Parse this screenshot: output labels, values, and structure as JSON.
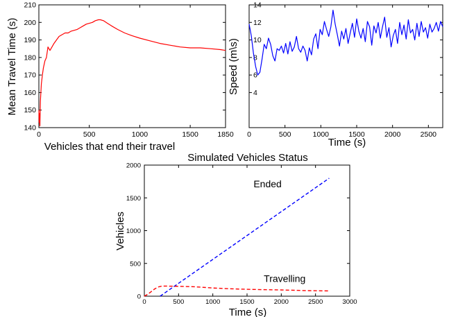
{
  "chart_data": [
    {
      "type": "line",
      "title": "",
      "xlabel": "Vehicles that end their travel",
      "ylabel": "Mean Travel Time (s)",
      "xlim": [
        0,
        1850
      ],
      "ylim": [
        140,
        210
      ],
      "xticks": [
        0,
        500,
        1000,
        1500,
        1850
      ],
      "yticks": [
        140,
        150,
        160,
        170,
        180,
        190,
        200,
        210
      ],
      "grid": false,
      "series": [
        {
          "color": "#ff0000",
          "style": "solid",
          "x": [
            0,
            3,
            6,
            10,
            15,
            20,
            25,
            35,
            45,
            60,
            75,
            90,
            110,
            130,
            150,
            175,
            200,
            230,
            260,
            290,
            320,
            350,
            380,
            410,
            440,
            470,
            500,
            530,
            560,
            590,
            610,
            640,
            680,
            720,
            780,
            850,
            920,
            1000,
            1100,
            1200,
            1300,
            1400,
            1500,
            1600,
            1700,
            1800,
            1850
          ],
          "y": [
            150,
            143,
            148,
            141,
            155,
            160,
            165,
            170,
            174,
            178,
            180,
            186,
            184,
            186,
            188,
            190,
            192,
            193,
            194,
            194,
            195,
            195.5,
            196,
            197,
            198,
            199,
            199.5,
            200,
            201,
            201.5,
            201.5,
            201,
            199.5,
            198,
            196,
            194,
            192.5,
            191,
            189.5,
            188,
            187,
            186,
            185.5,
            185.5,
            185,
            184.5,
            184
          ]
        }
      ]
    },
    {
      "type": "line",
      "title": "",
      "xlabel": "Time (s)",
      "ylabel": "Speed (m\\s)",
      "xlim": [
        0,
        2700
      ],
      "ylim": [
        0,
        14
      ],
      "xticks": [
        0,
        500,
        1000,
        1500,
        2000,
        2500
      ],
      "yticks": [
        4,
        6,
        8,
        10,
        12,
        14
      ],
      "grid": false,
      "series": [
        {
          "color": "#0000ff",
          "style": "solid",
          "x": [
            0,
            30,
            60,
            90,
            120,
            150,
            180,
            210,
            240,
            270,
            300,
            330,
            360,
            390,
            420,
            450,
            480,
            510,
            540,
            570,
            600,
            630,
            660,
            690,
            720,
            750,
            780,
            810,
            840,
            870,
            900,
            930,
            960,
            990,
            1020,
            1050,
            1080,
            1110,
            1140,
            1170,
            1200,
            1230,
            1260,
            1290,
            1320,
            1350,
            1380,
            1410,
            1440,
            1470,
            1500,
            1530,
            1560,
            1590,
            1620,
            1650,
            1680,
            1710,
            1740,
            1770,
            1800,
            1830,
            1860,
            1890,
            1920,
            1950,
            1980,
            2010,
            2040,
            2070,
            2100,
            2130,
            2160,
            2190,
            2220,
            2250,
            2280,
            2310,
            2340,
            2370,
            2400,
            2430,
            2460,
            2490,
            2520,
            2550,
            2580,
            2610,
            2640,
            2670,
            2700
          ],
          "y": [
            11.8,
            10.5,
            8.5,
            7.0,
            6.0,
            6.3,
            7.8,
            9.5,
            9.0,
            10.2,
            9.5,
            8.2,
            7.6,
            9.0,
            8.8,
            9.3,
            8.5,
            9.6,
            8.4,
            9.8,
            8.7,
            9.2,
            10.4,
            9.0,
            8.6,
            9.3,
            8.8,
            7.6,
            9.1,
            8.3,
            10.1,
            10.7,
            9.0,
            11.2,
            10.6,
            12.1,
            11.2,
            10.4,
            11.5,
            13.4,
            11.8,
            10.6,
            9.3,
            11.0,
            10.1,
            11.3,
            9.6,
            10.8,
            11.9,
            10.3,
            12.4,
            11.0,
            10.2,
            11.3,
            9.8,
            12.1,
            11.5,
            9.4,
            11.6,
            10.8,
            12.0,
            10.2,
            11.5,
            12.6,
            10.3,
            11.4,
            9.2,
            10.5,
            11.2,
            9.6,
            12.0,
            10.6,
            11.7,
            10.1,
            12.3,
            10.8,
            11.2,
            10.0,
            11.9,
            10.4,
            12.1,
            10.9,
            11.4,
            10.2,
            11.8,
            10.9,
            11.3,
            12.0,
            11.0,
            12.1,
            11.5
          ]
        }
      ]
    },
    {
      "type": "line",
      "title": "Simulated Vehicles Status",
      "xlabel": "Time (s)",
      "ylabel": "Vehicles",
      "xlim": [
        0,
        3000
      ],
      "ylim": [
        0,
        2000
      ],
      "xticks": [
        0,
        500,
        1000,
        1500,
        2000,
        2500,
        3000
      ],
      "yticks": [
        0,
        500,
        1000,
        1500,
        2000
      ],
      "grid": false,
      "annotations": [
        {
          "text": "Ended",
          "x": 1800,
          "y": 1660
        },
        {
          "text": "Travelling",
          "x": 2050,
          "y": 215
        }
      ],
      "series": [
        {
          "color": "#0000ff",
          "style": "dashed",
          "x": [
            230,
            2700
          ],
          "y": [
            0,
            1800
          ]
        },
        {
          "color": "#ff0000",
          "style": "dashed",
          "x": [
            0,
            50,
            100,
            150,
            200,
            250,
            300,
            400,
            500,
            600,
            700,
            800,
            900,
            1000,
            1200,
            1400,
            1600,
            1800,
            2000,
            2200,
            2400,
            2600,
            2700
          ],
          "y": [
            0,
            30,
            70,
            110,
            140,
            152,
            155,
            152,
            150,
            148,
            145,
            140,
            132,
            125,
            115,
            108,
            103,
            98,
            95,
            90,
            85,
            82,
            80
          ]
        }
      ]
    }
  ]
}
